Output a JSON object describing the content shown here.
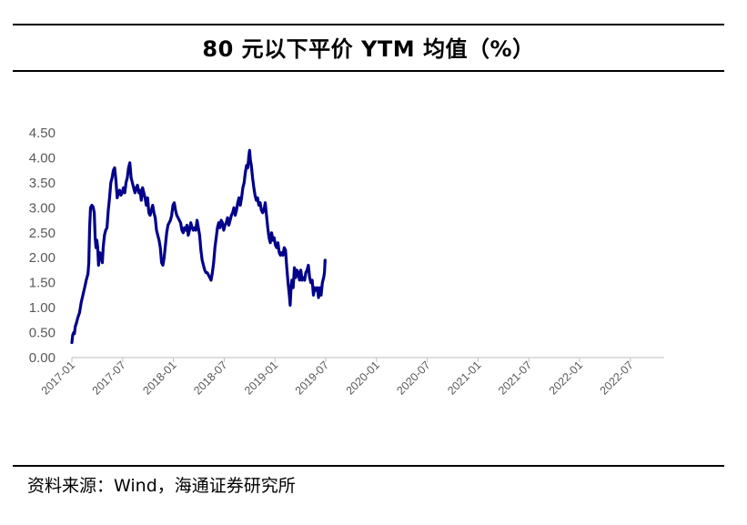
{
  "title": "80 元以下平价 YTM 均值（%）",
  "source": "资料来源：Wind，海通证券研究所",
  "chart_data": {
    "type": "line",
    "title": "80 元以下平价 YTM 均值（%）",
    "xlabel": "",
    "ylabel": "",
    "ylim": [
      0,
      4.5
    ],
    "yticks": [
      "0.00",
      "0.50",
      "1.00",
      "1.50",
      "2.00",
      "2.50",
      "3.00",
      "3.50",
      "4.00",
      "4.50"
    ],
    "xticks": [
      "2017-01",
      "2017-07",
      "2018-01",
      "2018-07",
      "2019-01",
      "2019-07",
      "2020-01",
      "2020-07",
      "2021-01",
      "2021-07",
      "2022-01",
      "2022-07"
    ],
    "x_start": "2017-01",
    "x_end": "2022-12",
    "series": [
      {
        "name": "80元以下平价YTM均值",
        "color": "#00008B",
        "points": [
          [
            0.0,
            0.3
          ],
          [
            0.1,
            0.45
          ],
          [
            0.2,
            0.5
          ],
          [
            0.3,
            0.48
          ],
          [
            0.4,
            0.62
          ],
          [
            0.55,
            0.7
          ],
          [
            0.7,
            0.8
          ],
          [
            0.9,
            0.9
          ],
          [
            1.1,
            1.1
          ],
          [
            1.3,
            1.25
          ],
          [
            1.5,
            1.4
          ],
          [
            1.7,
            1.55
          ],
          [
            1.9,
            1.68
          ],
          [
            2.0,
            1.9
          ],
          [
            2.1,
            2.6
          ],
          [
            2.2,
            3.0
          ],
          [
            2.35,
            3.05
          ],
          [
            2.5,
            3.02
          ],
          [
            2.65,
            2.9
          ],
          [
            2.75,
            2.4
          ],
          [
            2.85,
            2.2
          ],
          [
            2.95,
            2.35
          ],
          [
            3.05,
            2.2
          ],
          [
            3.15,
            1.85
          ],
          [
            3.3,
            2.1
          ],
          [
            3.45,
            2.05
          ],
          [
            3.6,
            1.9
          ],
          [
            3.7,
            2.2
          ],
          [
            3.85,
            2.45
          ],
          [
            4.0,
            2.55
          ],
          [
            4.15,
            2.6
          ],
          [
            4.3,
            2.95
          ],
          [
            4.45,
            3.2
          ],
          [
            4.6,
            3.5
          ],
          [
            4.75,
            3.6
          ],
          [
            4.9,
            3.75
          ],
          [
            5.05,
            3.8
          ],
          [
            5.2,
            3.55
          ],
          [
            5.35,
            3.2
          ],
          [
            5.5,
            3.3
          ],
          [
            5.65,
            3.35
          ],
          [
            5.8,
            3.25
          ],
          [
            5.95,
            3.3
          ],
          [
            6.1,
            3.4
          ],
          [
            6.25,
            3.3
          ],
          [
            6.4,
            3.5
          ],
          [
            6.55,
            3.6
          ],
          [
            6.7,
            3.8
          ],
          [
            6.85,
            3.9
          ],
          [
            7.0,
            3.6
          ],
          [
            7.15,
            3.5
          ],
          [
            7.3,
            3.4
          ],
          [
            7.45,
            3.3
          ],
          [
            7.6,
            3.4
          ],
          [
            7.75,
            3.45
          ],
          [
            7.9,
            3.3
          ],
          [
            8.05,
            3.35
          ],
          [
            8.2,
            3.15
          ],
          [
            8.35,
            3.4
          ],
          [
            8.5,
            3.3
          ],
          [
            8.65,
            3.2
          ],
          [
            8.8,
            3.05
          ],
          [
            8.95,
            3.2
          ],
          [
            9.1,
            2.9
          ],
          [
            9.25,
            2.85
          ],
          [
            9.4,
            2.95
          ],
          [
            9.55,
            3.05
          ],
          [
            9.7,
            2.9
          ],
          [
            9.85,
            2.8
          ],
          [
            10.0,
            2.55
          ],
          [
            10.15,
            2.45
          ],
          [
            10.3,
            2.35
          ],
          [
            10.45,
            2.2
          ],
          [
            10.6,
            1.9
          ],
          [
            10.75,
            1.85
          ],
          [
            10.9,
            2.0
          ],
          [
            11.05,
            2.25
          ],
          [
            11.2,
            2.5
          ],
          [
            11.35,
            2.65
          ],
          [
            11.5,
            2.7
          ],
          [
            11.65,
            2.75
          ],
          [
            11.8,
            2.85
          ],
          [
            11.95,
            3.05
          ],
          [
            12.1,
            3.1
          ],
          [
            12.25,
            2.95
          ],
          [
            12.4,
            2.85
          ],
          [
            12.55,
            2.8
          ],
          [
            12.7,
            2.75
          ],
          [
            12.85,
            2.7
          ],
          [
            13.0,
            2.55
          ],
          [
            13.15,
            2.5
          ],
          [
            13.3,
            2.6
          ],
          [
            13.45,
            2.55
          ],
          [
            13.6,
            2.65
          ],
          [
            13.75,
            2.45
          ],
          [
            13.9,
            2.55
          ],
          [
            14.05,
            2.7
          ],
          [
            14.2,
            2.6
          ],
          [
            14.35,
            2.55
          ],
          [
            14.5,
            2.6
          ],
          [
            14.65,
            2.55
          ],
          [
            14.8,
            2.75
          ],
          [
            14.95,
            2.6
          ],
          [
            15.1,
            2.45
          ],
          [
            15.25,
            2.15
          ],
          [
            15.4,
            1.95
          ],
          [
            15.55,
            1.85
          ],
          [
            15.7,
            1.75
          ],
          [
            15.85,
            1.7
          ],
          [
            16.0,
            1.7
          ],
          [
            16.15,
            1.65
          ],
          [
            16.3,
            1.6
          ],
          [
            16.45,
            1.55
          ],
          [
            16.6,
            1.7
          ],
          [
            16.75,
            1.9
          ],
          [
            16.9,
            2.2
          ],
          [
            17.05,
            2.4
          ],
          [
            17.2,
            2.6
          ],
          [
            17.35,
            2.7
          ],
          [
            17.5,
            2.6
          ],
          [
            17.65,
            2.75
          ],
          [
            17.8,
            2.7
          ],
          [
            17.95,
            2.55
          ],
          [
            18.1,
            2.65
          ],
          [
            18.25,
            2.7
          ],
          [
            18.4,
            2.8
          ],
          [
            18.55,
            2.65
          ],
          [
            18.7,
            2.75
          ],
          [
            18.85,
            2.85
          ],
          [
            19.0,
            2.9
          ],
          [
            19.15,
            3.0
          ],
          [
            19.3,
            2.85
          ],
          [
            19.45,
            2.95
          ],
          [
            19.6,
            3.1
          ],
          [
            19.75,
            3.2
          ],
          [
            19.9,
            3.05
          ],
          [
            20.05,
            3.2
          ],
          [
            20.2,
            3.4
          ],
          [
            20.35,
            3.5
          ],
          [
            20.5,
            3.7
          ],
          [
            20.65,
            3.85
          ],
          [
            20.8,
            3.8
          ],
          [
            20.9,
            4.02
          ],
          [
            21.0,
            4.15
          ],
          [
            21.1,
            3.95
          ],
          [
            21.2,
            3.85
          ],
          [
            21.35,
            3.6
          ],
          [
            21.5,
            3.4
          ],
          [
            21.65,
            3.25
          ],
          [
            21.8,
            3.15
          ],
          [
            21.95,
            3.2
          ],
          [
            22.1,
            3.05
          ],
          [
            22.25,
            3.1
          ],
          [
            22.4,
            2.95
          ],
          [
            22.55,
            2.9
          ],
          [
            22.7,
            2.95
          ],
          [
            22.85,
            3.1
          ],
          [
            23.0,
            2.85
          ],
          [
            23.15,
            2.6
          ],
          [
            23.3,
            2.4
          ],
          [
            23.45,
            2.3
          ],
          [
            23.6,
            2.5
          ],
          [
            23.75,
            2.35
          ],
          [
            23.9,
            2.4
          ],
          [
            24.05,
            2.25
          ],
          [
            24.2,
            2.2
          ],
          [
            24.35,
            2.3
          ],
          [
            24.5,
            2.1
          ],
          [
            24.65,
            2.05
          ],
          [
            24.8,
            2.1
          ],
          [
            24.95,
            2.05
          ],
          [
            25.1,
            2.2
          ],
          [
            25.25,
            2.15
          ],
          [
            25.4,
            1.8
          ],
          [
            25.55,
            1.5
          ],
          [
            25.7,
            1.25
          ],
          [
            25.8,
            1.05
          ],
          [
            25.9,
            1.4
          ],
          [
            26.0,
            1.55
          ],
          [
            26.15,
            1.4
          ],
          [
            26.3,
            1.8
          ],
          [
            26.45,
            1.6
          ],
          [
            26.6,
            1.75
          ],
          [
            26.75,
            1.7
          ],
          [
            26.9,
            1.55
          ],
          [
            27.05,
            1.75
          ],
          [
            27.2,
            1.55
          ],
          [
            27.35,
            1.6
          ],
          [
            27.5,
            1.55
          ],
          [
            27.65,
            1.7
          ],
          [
            27.8,
            1.75
          ],
          [
            27.95,
            1.85
          ],
          [
            28.1,
            1.6
          ],
          [
            28.25,
            1.5
          ],
          [
            28.4,
            1.55
          ],
          [
            28.55,
            1.25
          ],
          [
            28.7,
            1.4
          ],
          [
            28.85,
            1.35
          ],
          [
            29.0,
            1.4
          ],
          [
            29.15,
            1.2
          ],
          [
            29.3,
            1.4
          ],
          [
            29.45,
            1.25
          ],
          [
            29.6,
            1.5
          ],
          [
            29.75,
            1.6
          ],
          [
            29.85,
            1.7
          ],
          [
            29.93,
            1.95
          ]
        ]
      }
    ]
  }
}
